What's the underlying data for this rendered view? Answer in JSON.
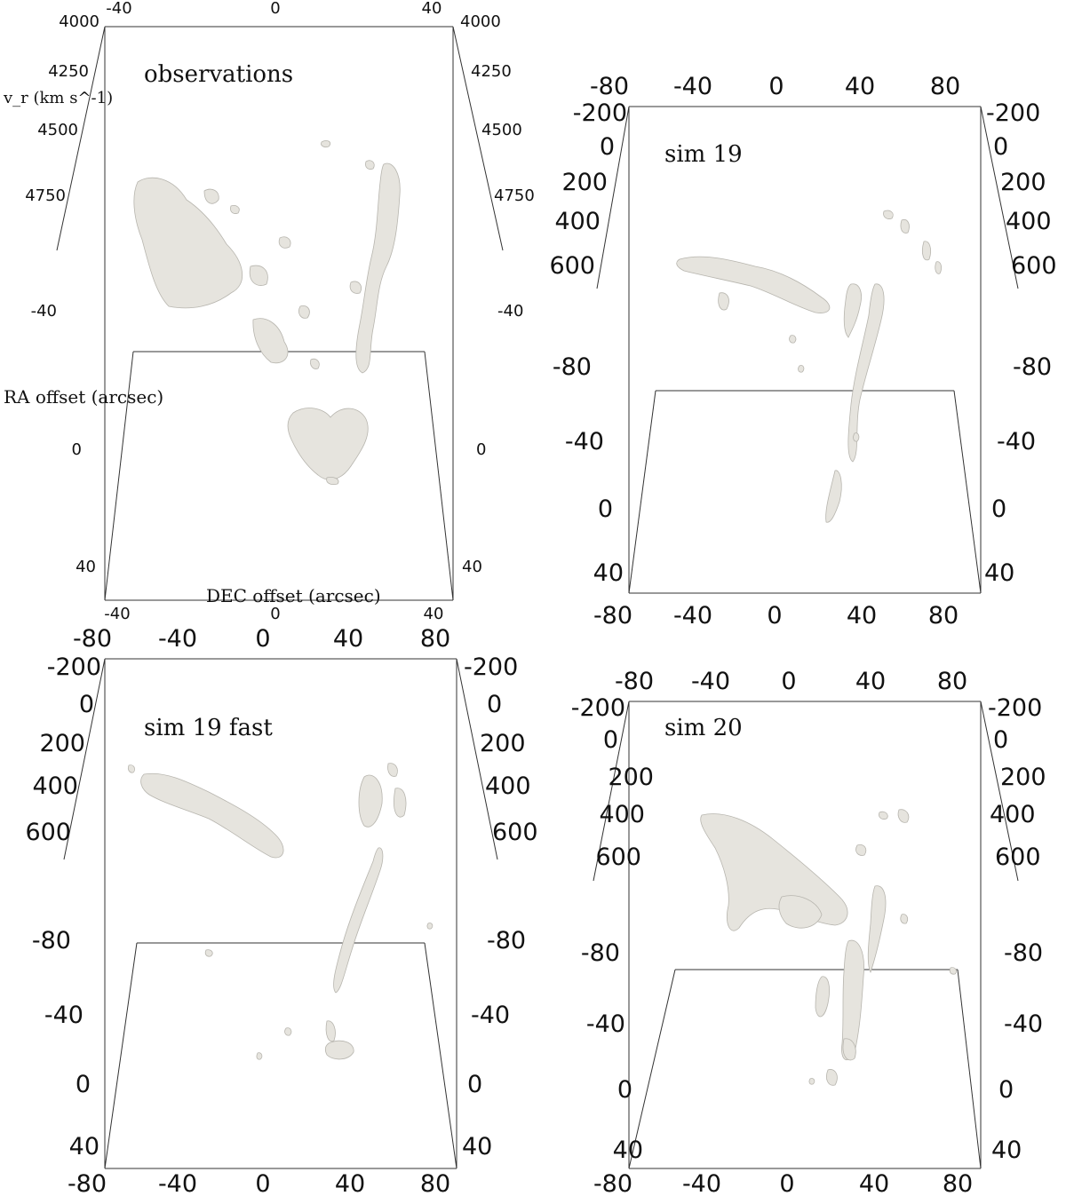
{
  "panels": [
    {
      "label": "observations",
      "top_ticks": [
        "-40",
        "0",
        "40"
      ],
      "bottom_ticks": [
        "-40",
        "0",
        "40"
      ],
      "vel_ticks": [
        "4000",
        "4250",
        "4500",
        "4750"
      ],
      "ra_ticks": [
        "-40",
        "0",
        "40"
      ],
      "vel_axis_title": "v_r (km s^-1)",
      "ra_axis_title": "RA offset (arcsec)",
      "dec_axis_title": "DEC offset (arcsec)"
    },
    {
      "label": "sim 19",
      "top_ticks": [
        "-80",
        "-40",
        "0",
        "40",
        "80"
      ],
      "bottom_ticks": [
        "-80",
        "-40",
        "0",
        "40",
        "80"
      ],
      "vel_ticks": [
        "-200",
        "0",
        "200",
        "400",
        "600"
      ],
      "ra_ticks": [
        "-80",
        "-40",
        "0",
        "40"
      ]
    },
    {
      "label": "sim 19 fast",
      "top_ticks": [
        "-80",
        "-40",
        "0",
        "40",
        "80"
      ],
      "bottom_ticks": [
        "-80",
        "-40",
        "0",
        "40",
        "80"
      ],
      "vel_ticks": [
        "-200",
        "0",
        "200",
        "400",
        "600"
      ],
      "ra_ticks": [
        "-80",
        "-40",
        "0",
        "40"
      ]
    },
    {
      "label": "sim 20",
      "top_ticks": [
        "-80",
        "-40",
        "0",
        "40",
        "80"
      ],
      "bottom_ticks": [
        "-80",
        "-40",
        "0",
        "40",
        "80"
      ],
      "vel_ticks": [
        "-200",
        "0",
        "200",
        "400",
        "600"
      ],
      "ra_ticks": [
        "-80",
        "-40",
        "0",
        "40"
      ]
    }
  ]
}
